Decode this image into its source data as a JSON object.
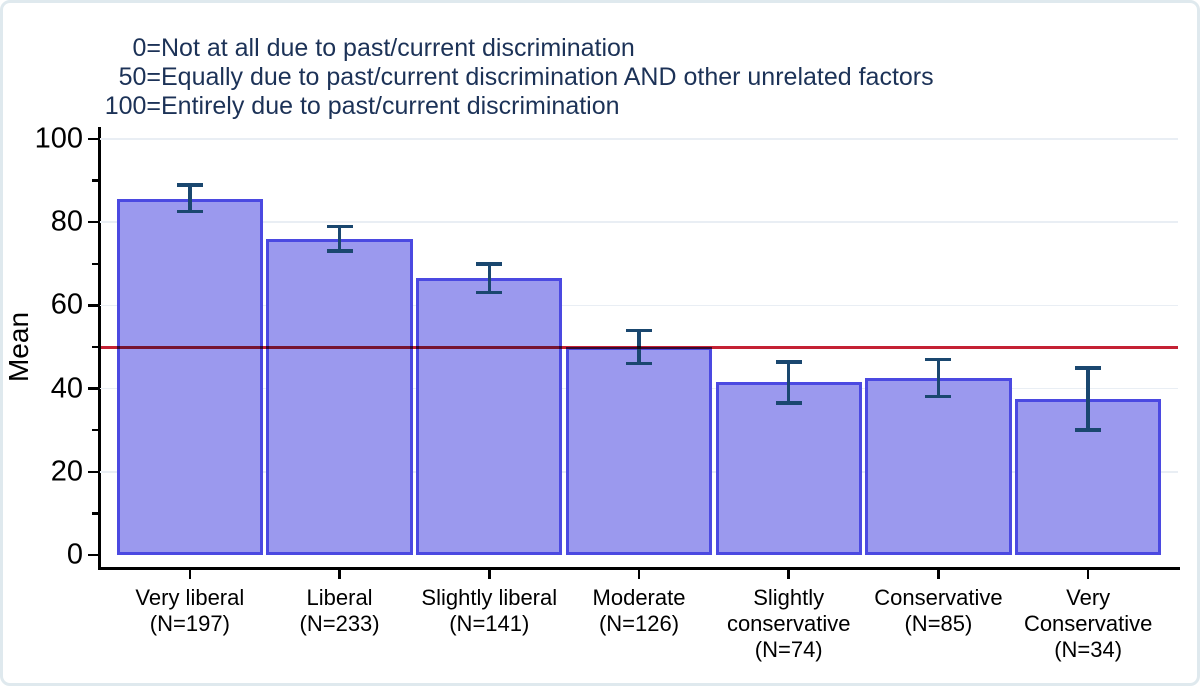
{
  "chart_data": {
    "type": "bar",
    "title_lines": [
      {
        "num": "0=",
        "text": "Not at all due to past/current discrimination"
      },
      {
        "num": "50=",
        "text": "Equally due to past/current discrimination AND other unrelated factors"
      },
      {
        "num": "100=",
        "text": "Entirely due to past/current discrimination"
      }
    ],
    "ylabel": "Mean",
    "ylim": [
      0,
      100
    ],
    "yticks": [
      0,
      20,
      40,
      60,
      80,
      100
    ],
    "minor_yticks": [
      10,
      30,
      50,
      70,
      90
    ],
    "grid": "on",
    "ref_line_value": 50,
    "categories": [
      {
        "label_lines": [
          "Very liberal",
          "(N=197)"
        ],
        "n": 197,
        "mean": 85.5,
        "ci_low": 82.5,
        "ci_high": 89.0
      },
      {
        "label_lines": [
          "Liberal",
          "(N=233)"
        ],
        "n": 233,
        "mean": 76.0,
        "ci_low": 73.0,
        "ci_high": 79.0
      },
      {
        "label_lines": [
          "Slightly liberal",
          "(N=141)"
        ],
        "n": 141,
        "mean": 66.5,
        "ci_low": 63.0,
        "ci_high": 70.0
      },
      {
        "label_lines": [
          "Moderate",
          "(N=126)"
        ],
        "n": 126,
        "mean": 50.0,
        "ci_low": 46.0,
        "ci_high": 54.0
      },
      {
        "label_lines": [
          "Slightly",
          "conservative",
          "(N=74)"
        ],
        "n": 74,
        "mean": 41.5,
        "ci_low": 36.5,
        "ci_high": 46.5
      },
      {
        "label_lines": [
          "Conservative",
          "(N=85)"
        ],
        "n": 85,
        "mean": 42.5,
        "ci_low": 38.0,
        "ci_high": 47.0
      },
      {
        "label_lines": [
          "Very",
          "Conservative",
          "(N=34)"
        ],
        "n": 34,
        "mean": 37.5,
        "ci_low": 30.0,
        "ci_high": 45.0
      }
    ],
    "colors": {
      "bar_fill": "#9b99ee",
      "bar_border": "#4b49e1",
      "error_bar": "#1a476f",
      "ref_line": "#c42134",
      "title_text": "#1c3257",
      "axis_text": "#000000",
      "gridline": "#e9eef4",
      "frame_border": "#dfe9ee"
    }
  }
}
